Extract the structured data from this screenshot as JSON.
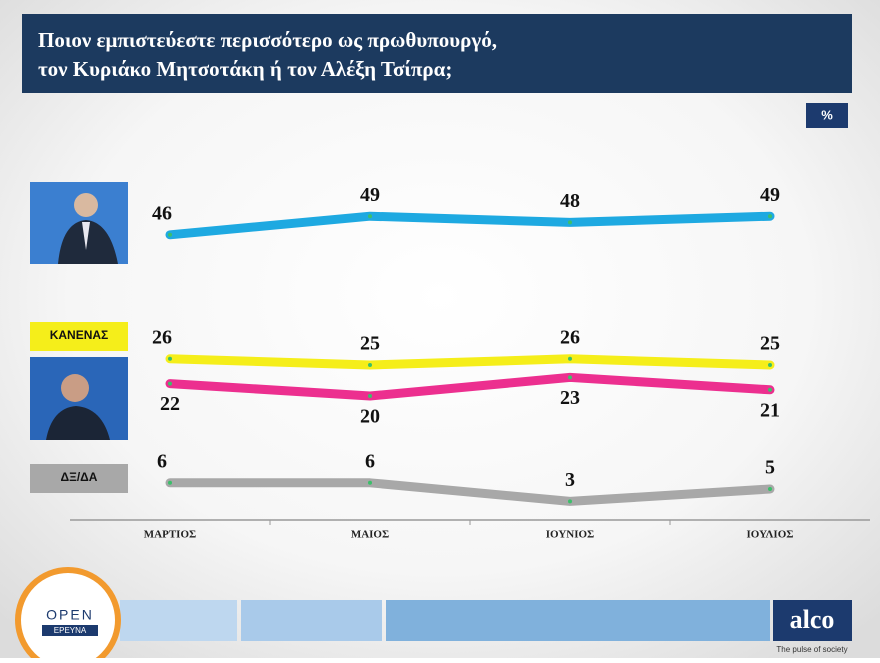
{
  "chart_data": {
    "type": "line",
    "title": [
      "Ποιον εμπιστεύεστε περισσότερο ως πρωθυπουργό,",
      "τον Κυριάκο Μητσοτάκη ή τον Αλέξη Τσίπρα;"
    ],
    "unit": "%",
    "categories": [
      "ΜΑΡΤΙΟΣ",
      "ΜΑΙΟΣ",
      "ΙΟΥΝΙΟΣ",
      "ΙΟΥΛΙΟΣ"
    ],
    "ylim": [
      0,
      50
    ],
    "series": [
      {
        "color": "#1ea9e1",
        "values": [
          46,
          49,
          48,
          49
        ],
        "label_position": "above"
      },
      {
        "name": "ΚΑΝΕΝΑΣ",
        "color": "#f5ee1a",
        "values": [
          26,
          25,
          26,
          25
        ],
        "label_position": "above"
      },
      {
        "color": "#ec2f8f",
        "values": [
          22,
          20,
          23,
          21
        ],
        "label_position": "below"
      },
      {
        "name": "ΔΞ/ΔΑ",
        "color": "#a8a8a8",
        "values": [
          6,
          6,
          3,
          5
        ],
        "label_position": "above"
      }
    ]
  },
  "branding": {
    "open": "OPEN",
    "erevna": "ΕΡΕΥΝΑ",
    "alco": "alco",
    "tagline": "The pulse of society"
  }
}
